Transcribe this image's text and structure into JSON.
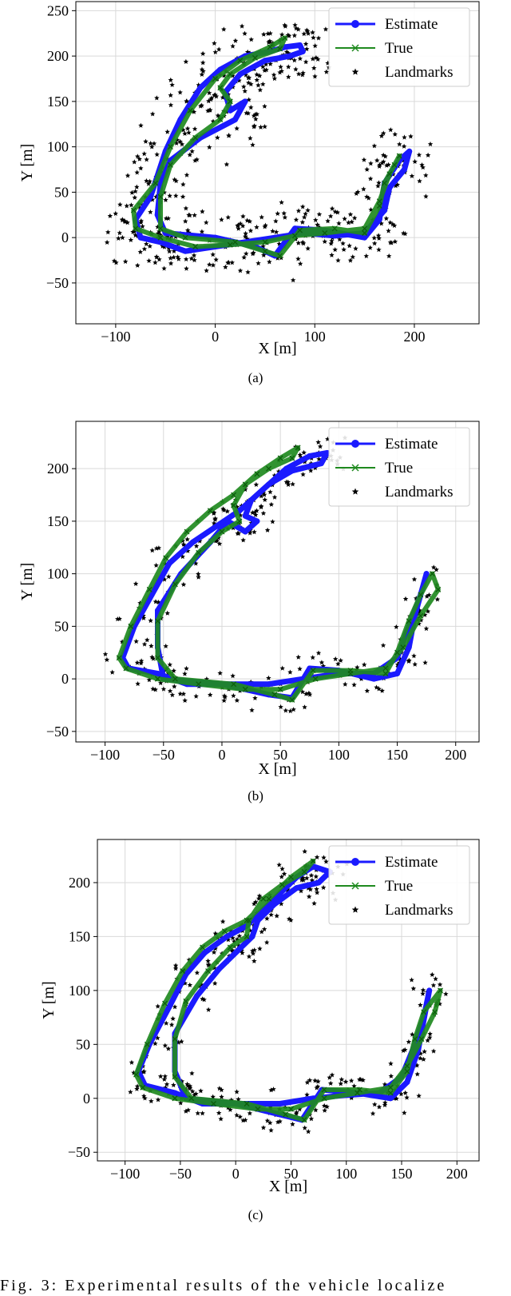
{
  "caption": "Fig. 3: Experimental results of the vehicle localize",
  "colors": {
    "estimate": "#1a1aff",
    "true": "#1f8a1f",
    "landmarks": "#000000",
    "grid": "#d9d9d9"
  },
  "chart_data": [
    {
      "type": "line",
      "panel_label": "(a)",
      "xlabel": "X [m]",
      "ylabel": "Y [m]",
      "xlim": [
        -140,
        265
      ],
      "ylim": [
        -95,
        260
      ],
      "xticks": [
        -100,
        0,
        100,
        200
      ],
      "yticks": [
        -50,
        0,
        50,
        100,
        150,
        200,
        250
      ],
      "grid": true,
      "legend": {
        "placement": "top-right",
        "entries": [
          "Estimate",
          "True",
          "Landmarks"
        ]
      },
      "series": [
        {
          "name": "Estimate",
          "marker": "o",
          "points": [
            [
              -55,
              -5
            ],
            [
              -75,
              0
            ],
            [
              -80,
              20
            ],
            [
              -65,
              45
            ],
            [
              -50,
              95
            ],
            [
              -35,
              130
            ],
            [
              -15,
              165
            ],
            [
              5,
              185
            ],
            [
              30,
              200
            ],
            [
              55,
              205
            ],
            [
              70,
              210
            ],
            [
              85,
              212
            ],
            [
              88,
              205
            ],
            [
              75,
              200
            ],
            [
              50,
              195
            ],
            [
              25,
              180
            ],
            [
              10,
              160
            ],
            [
              15,
              140
            ],
            [
              30,
              150
            ],
            [
              20,
              130
            ],
            [
              -15,
              110
            ],
            [
              -45,
              85
            ],
            [
              -55,
              60
            ],
            [
              -58,
              25
            ],
            [
              -50,
              5
            ],
            [
              0,
              0
            ],
            [
              40,
              -10
            ],
            [
              60,
              -20
            ],
            [
              80,
              10
            ],
            [
              110,
              8
            ],
            [
              150,
              0
            ],
            [
              165,
              20
            ],
            [
              170,
              60
            ],
            [
              185,
              85
            ],
            [
              195,
              95
            ],
            [
              190,
              75
            ],
            [
              175,
              55
            ],
            [
              170,
              30
            ],
            [
              150,
              5
            ],
            [
              120,
              2
            ],
            [
              90,
              5
            ],
            [
              60,
              0
            ],
            [
              30,
              -5
            ],
            [
              0,
              -10
            ],
            [
              -30,
              -15
            ],
            [
              -55,
              -5
            ]
          ]
        },
        {
          "name": "True",
          "marker": "x",
          "points": [
            [
              -55,
              0
            ],
            [
              -80,
              10
            ],
            [
              -82,
              30
            ],
            [
              -60,
              60
            ],
            [
              -45,
              100
            ],
            [
              -25,
              140
            ],
            [
              0,
              175
            ],
            [
              25,
              195
            ],
            [
              55,
              210
            ],
            [
              70,
              220
            ],
            [
              65,
              208
            ],
            [
              40,
              198
            ],
            [
              15,
              180
            ],
            [
              5,
              165
            ],
            [
              15,
              150
            ],
            [
              5,
              130
            ],
            [
              -20,
              110
            ],
            [
              -45,
              80
            ],
            [
              -55,
              45
            ],
            [
              -55,
              10
            ],
            [
              -30,
              0
            ],
            [
              20,
              -5
            ],
            [
              50,
              -15
            ],
            [
              65,
              -20
            ],
            [
              85,
              8
            ],
            [
              120,
              10
            ],
            [
              150,
              5
            ],
            [
              165,
              35
            ],
            [
              170,
              60
            ],
            [
              180,
              80
            ],
            [
              185,
              90
            ],
            [
              175,
              70
            ],
            [
              165,
              40
            ],
            [
              150,
              10
            ],
            [
              110,
              5
            ],
            [
              80,
              2
            ],
            [
              50,
              -5
            ],
            [
              15,
              -8
            ],
            [
              -20,
              -10
            ],
            [
              -55,
              0
            ]
          ]
        }
      ],
      "landmarks": {
        "name": "Landmarks",
        "marker": "*",
        "count": 520
      }
    },
    {
      "type": "line",
      "panel_label": "(b)",
      "xlabel": "X [m]",
      "ylabel": "Y [m]",
      "xlim": [
        -125,
        220
      ],
      "ylim": [
        -60,
        245
      ],
      "xticks": [
        -100,
        -50,
        0,
        50,
        100,
        150,
        200
      ],
      "yticks": [
        -50,
        0,
        50,
        100,
        150,
        200
      ],
      "grid": true,
      "legend": {
        "placement": "top-right",
        "entries": [
          "Estimate",
          "True",
          "Landmarks"
        ]
      },
      "series": [
        {
          "name": "Estimate",
          "marker": "o",
          "points": [
            [
              -55,
              5
            ],
            [
              -80,
              10
            ],
            [
              -85,
              20
            ],
            [
              -75,
              50
            ],
            [
              -60,
              80
            ],
            [
              -45,
              110
            ],
            [
              -25,
              130
            ],
            [
              -5,
              145
            ],
            [
              15,
              160
            ],
            [
              35,
              180
            ],
            [
              55,
              200
            ],
            [
              75,
              212
            ],
            [
              90,
              215
            ],
            [
              85,
              205
            ],
            [
              60,
              198
            ],
            [
              40,
              185
            ],
            [
              25,
              170
            ],
            [
              20,
              155
            ],
            [
              30,
              150
            ],
            [
              20,
              140
            ],
            [
              5,
              150
            ],
            [
              -10,
              130
            ],
            [
              -35,
              100
            ],
            [
              -55,
              65
            ],
            [
              -55,
              30
            ],
            [
              -50,
              0
            ],
            [
              0,
              -5
            ],
            [
              40,
              -15
            ],
            [
              60,
              -18
            ],
            [
              75,
              10
            ],
            [
              100,
              8
            ],
            [
              130,
              0
            ],
            [
              150,
              5
            ],
            [
              160,
              30
            ],
            [
              165,
              60
            ],
            [
              175,
              100
            ],
            [
              170,
              80
            ],
            [
              160,
              50
            ],
            [
              150,
              20
            ],
            [
              130,
              5
            ],
            [
              100,
              5
            ],
            [
              70,
              0
            ],
            [
              40,
              -5
            ],
            [
              0,
              -5
            ],
            [
              -30,
              -5
            ],
            [
              -55,
              5
            ]
          ]
        },
        {
          "name": "True",
          "marker": "x",
          "points": [
            [
              -55,
              0
            ],
            [
              -82,
              10
            ],
            [
              -88,
              20
            ],
            [
              -78,
              50
            ],
            [
              -62,
              85
            ],
            [
              -48,
              115
            ],
            [
              -30,
              140
            ],
            [
              -10,
              160
            ],
            [
              10,
              175
            ],
            [
              30,
              195
            ],
            [
              50,
              210
            ],
            [
              65,
              220
            ],
            [
              60,
              210
            ],
            [
              40,
              200
            ],
            [
              20,
              185
            ],
            [
              10,
              165
            ],
            [
              15,
              150
            ],
            [
              0,
              140
            ],
            [
              -20,
              120
            ],
            [
              -40,
              90
            ],
            [
              -55,
              55
            ],
            [
              -55,
              20
            ],
            [
              -40,
              0
            ],
            [
              10,
              -5
            ],
            [
              45,
              -15
            ],
            [
              60,
              -20
            ],
            [
              78,
              8
            ],
            [
              110,
              8
            ],
            [
              140,
              5
            ],
            [
              150,
              25
            ],
            [
              160,
              55
            ],
            [
              170,
              80
            ],
            [
              180,
              100
            ],
            [
              185,
              85
            ],
            [
              170,
              60
            ],
            [
              155,
              30
            ],
            [
              140,
              10
            ],
            [
              110,
              5
            ],
            [
              80,
              0
            ],
            [
              50,
              -10
            ],
            [
              20,
              -10
            ],
            [
              -20,
              -5
            ],
            [
              -55,
              0
            ]
          ]
        }
      ],
      "landmarks": {
        "name": "Landmarks",
        "marker": "*",
        "count": 300
      }
    },
    {
      "type": "line",
      "panel_label": "(c)",
      "xlabel": "X [m]",
      "ylabel": "Y [m]",
      "xlim": [
        -125,
        220
      ],
      "ylim": [
        -58,
        240
      ],
      "xticks": [
        -100,
        -50,
        0,
        50,
        100,
        150,
        200
      ],
      "yticks": [
        -50,
        0,
        50,
        100,
        150,
        200
      ],
      "grid": true,
      "legend": {
        "placement": "top-right",
        "entries": [
          "Estimate",
          "True",
          "Landmarks"
        ]
      },
      "series": [
        {
          "name": "Estimate",
          "marker": "o",
          "points": [
            [
              -55,
              5
            ],
            [
              -82,
              12
            ],
            [
              -88,
              25
            ],
            [
              -78,
              50
            ],
            [
              -60,
              85
            ],
            [
              -45,
              115
            ],
            [
              -28,
              135
            ],
            [
              -8,
              150
            ],
            [
              10,
              160
            ],
            [
              30,
              180
            ],
            [
              55,
              205
            ],
            [
              70,
              215
            ],
            [
              85,
              210
            ],
            [
              75,
              200
            ],
            [
              55,
              195
            ],
            [
              35,
              180
            ],
            [
              20,
              165
            ],
            [
              15,
              150
            ],
            [
              5,
              140
            ],
            [
              -15,
              120
            ],
            [
              -35,
              95
            ],
            [
              -55,
              60
            ],
            [
              -55,
              25
            ],
            [
              -45,
              0
            ],
            [
              0,
              -5
            ],
            [
              40,
              -15
            ],
            [
              60,
              -20
            ],
            [
              78,
              8
            ],
            [
              110,
              5
            ],
            [
              140,
              0
            ],
            [
              155,
              15
            ],
            [
              165,
              45
            ],
            [
              175,
              100
            ],
            [
              170,
              75
            ],
            [
              160,
              45
            ],
            [
              150,
              20
            ],
            [
              130,
              5
            ],
            [
              100,
              3
            ],
            [
              70,
              0
            ],
            [
              40,
              -5
            ],
            [
              0,
              -5
            ],
            [
              -30,
              -5
            ],
            [
              -55,
              5
            ]
          ]
        },
        {
          "name": "True",
          "marker": "x",
          "points": [
            [
              -55,
              0
            ],
            [
              -84,
              10
            ],
            [
              -90,
              22
            ],
            [
              -80,
              50
            ],
            [
              -64,
              88
            ],
            [
              -48,
              118
            ],
            [
              -30,
              140
            ],
            [
              -10,
              155
            ],
            [
              10,
              165
            ],
            [
              30,
              185
            ],
            [
              50,
              205
            ],
            [
              70,
              220
            ],
            [
              62,
              210
            ],
            [
              42,
              198
            ],
            [
              25,
              185
            ],
            [
              12,
              165
            ],
            [
              10,
              150
            ],
            [
              -5,
              140
            ],
            [
              -25,
              118
            ],
            [
              -45,
              90
            ],
            [
              -55,
              55
            ],
            [
              -55,
              20
            ],
            [
              -40,
              0
            ],
            [
              10,
              -5
            ],
            [
              45,
              -15
            ],
            [
              62,
              -20
            ],
            [
              80,
              8
            ],
            [
              112,
              8
            ],
            [
              140,
              5
            ],
            [
              155,
              25
            ],
            [
              162,
              55
            ],
            [
              170,
              80
            ],
            [
              185,
              100
            ],
            [
              180,
              80
            ],
            [
              168,
              55
            ],
            [
              155,
              30
            ],
            [
              140,
              10
            ],
            [
              110,
              5
            ],
            [
              80,
              0
            ],
            [
              50,
              -10
            ],
            [
              20,
              -10
            ],
            [
              -20,
              -5
            ],
            [
              -55,
              0
            ]
          ]
        }
      ],
      "landmarks": {
        "name": "Landmarks",
        "marker": "*",
        "count": 330
      }
    }
  ]
}
